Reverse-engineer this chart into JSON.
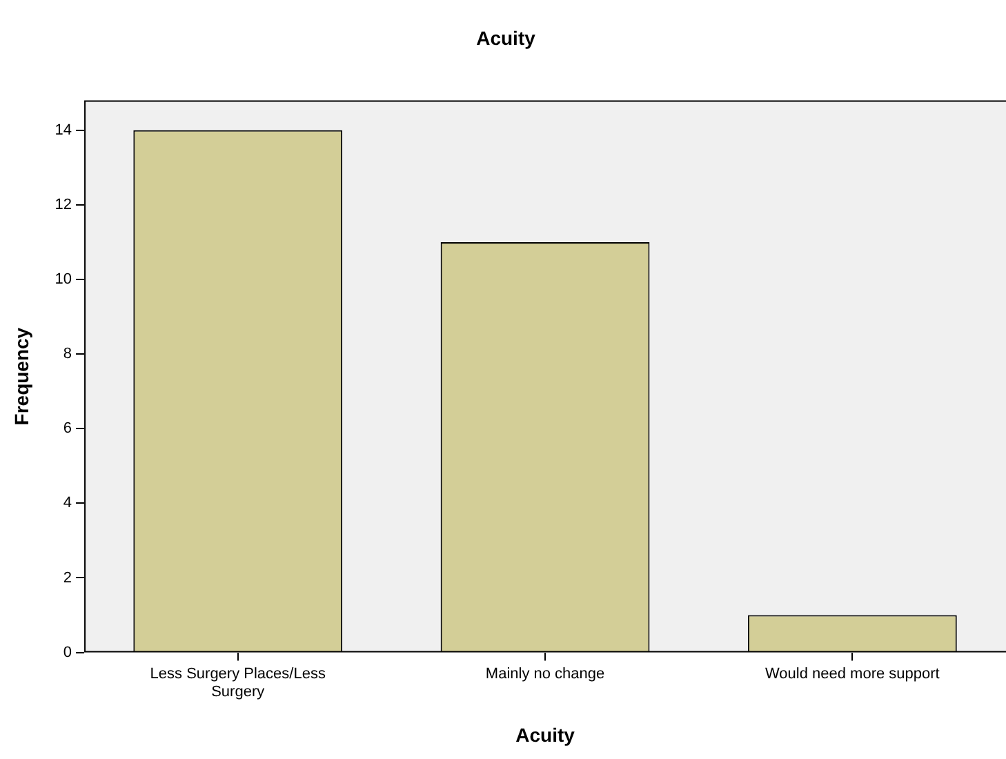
{
  "chart_data": {
    "type": "bar",
    "title": "Acuity",
    "xlabel": "Acuity",
    "ylabel": "Frequency",
    "categories": [
      "Less Surgery Places/Less Surgery",
      "Mainly no change",
      "Would need more support"
    ],
    "values": [
      14,
      11,
      1
    ],
    "color": "#d3ce97",
    "ylim": [
      0,
      14.8
    ],
    "yticks": [
      0,
      2,
      4,
      6,
      8,
      10,
      12,
      14
    ],
    "grid": false,
    "legend": false
  }
}
